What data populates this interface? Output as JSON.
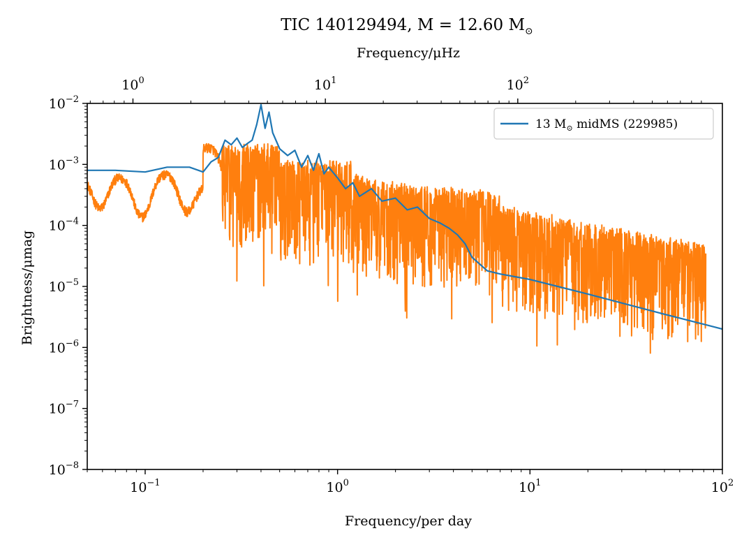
{
  "chart_data": {
    "type": "line",
    "title": "TIC 140129494, M = 12.60 M",
    "title_sun_symbol": "⊙",
    "xlabel": "Frequency/per day",
    "ylabel": "Brightness/μmag",
    "top_xlabel": "Frequency/μHz",
    "x_scale": "log",
    "y_scale": "log",
    "xlim": [
      0.05,
      100
    ],
    "ylim": [
      1e-08,
      0.01
    ],
    "top_xlim_uHz": [
      0.5787,
      1157.4
    ],
    "x_ticks": [
      {
        "value": 0.1,
        "base": "10",
        "exp": "−1"
      },
      {
        "value": 1,
        "base": "10",
        "exp": "0"
      },
      {
        "value": 10,
        "base": "10",
        "exp": "1"
      },
      {
        "value": 100,
        "base": "10",
        "exp": "2"
      }
    ],
    "top_x_ticks": [
      {
        "value": 1,
        "base": "10",
        "exp": "0"
      },
      {
        "value": 10,
        "base": "10",
        "exp": "1"
      },
      {
        "value": 100,
        "base": "10",
        "exp": "2"
      }
    ],
    "y_ticks": [
      {
        "value": 1e-08,
        "base": "10",
        "exp": "−8"
      },
      {
        "value": 1e-07,
        "base": "10",
        "exp": "−7"
      },
      {
        "value": 1e-06,
        "base": "10",
        "exp": "−6"
      },
      {
        "value": 1e-05,
        "base": "10",
        "exp": "−5"
      },
      {
        "value": 0.0001,
        "base": "10",
        "exp": "−4"
      },
      {
        "value": 0.001,
        "base": "10",
        "exp": "−3"
      },
      {
        "value": 0.01,
        "base": "10",
        "exp": "−2"
      }
    ],
    "grid": false,
    "legend": {
      "placement": "top-right",
      "entries": [
        {
          "label": "13 M",
          "sun": "⊙",
          "suffix": " midMS (229985)",
          "color": "#1f77b4"
        }
      ]
    },
    "series": [
      {
        "name": "13 M⊙ midMS (229985)",
        "color": "#1f77b4",
        "x": [
          0.05,
          0.07,
          0.1,
          0.13,
          0.17,
          0.2,
          0.22,
          0.24,
          0.26,
          0.28,
          0.3,
          0.32,
          0.34,
          0.36,
          0.38,
          0.4,
          0.42,
          0.44,
          0.46,
          0.5,
          0.55,
          0.6,
          0.65,
          0.7,
          0.75,
          0.8,
          0.85,
          0.9,
          1.0,
          1.1,
          1.2,
          1.3,
          1.5,
          1.7,
          2.0,
          2.3,
          2.6,
          3.0,
          3.4,
          3.8,
          4.2,
          4.6,
          5.0,
          5.5,
          6.0,
          7.0,
          10,
          20,
          50,
          100
        ],
        "y": [
          0.0008,
          0.0008,
          0.00075,
          0.0009,
          0.0009,
          0.00075,
          0.0011,
          0.0013,
          0.0025,
          0.0021,
          0.0027,
          0.0019,
          0.0022,
          0.0025,
          0.0045,
          0.0095,
          0.0039,
          0.0072,
          0.0033,
          0.0018,
          0.0014,
          0.0017,
          0.0009,
          0.0014,
          0.0008,
          0.0015,
          0.0007,
          0.0009,
          0.0006,
          0.0004,
          0.0005,
          0.0003,
          0.0004,
          0.00025,
          0.00028,
          0.00018,
          0.0002,
          0.00013,
          0.00011,
          9e-05,
          7e-05,
          5e-05,
          3e-05,
          2.3e-05,
          1.8e-05,
          1.6e-05,
          1.3e-05,
          7.5e-06,
          3.5e-06,
          2e-06
        ]
      },
      {
        "name": "",
        "color": "#ff7f0e",
        "generator": "observed periodogram trace (dense noise, amplitude decreasing with frequency)",
        "x_range": [
          0.05,
          82
        ]
      }
    ]
  }
}
